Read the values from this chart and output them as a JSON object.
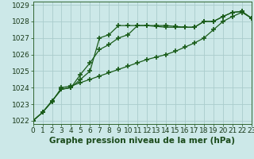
{
  "xlabel": "Graphe pression niveau de la mer (hPa)",
  "bg_color": "#cce8e8",
  "grid_color": "#aacccc",
  "line_color": "#1a5c1a",
  "marker": "+",
  "markersize": 4,
  "markeredgewidth": 1.2,
  "linewidth": 0.9,
  "series": [
    [
      1022.0,
      1022.5,
      1023.2,
      1023.9,
      1024.0,
      1024.8,
      1025.5,
      1026.3,
      1026.6,
      1027.0,
      1027.2,
      1027.75,
      1027.75,
      1027.75,
      1027.75,
      1027.7,
      1027.65,
      1027.65,
      1028.0,
      1028.0,
      1028.3,
      1028.55,
      1028.6,
      1028.2
    ],
    [
      1022.0,
      1022.5,
      1023.2,
      1023.9,
      1024.0,
      1024.5,
      1025.0,
      1027.0,
      1027.2,
      1027.75,
      1027.75,
      1027.75,
      1027.75,
      1027.7,
      1027.65,
      1027.65,
      1027.65,
      1027.65,
      1028.0,
      1028.0,
      1028.3,
      1028.55,
      1028.6,
      1028.2
    ],
    [
      1022.0,
      1022.5,
      1023.15,
      1024.0,
      1024.1,
      1024.3,
      1024.5,
      1024.7,
      1024.9,
      1025.1,
      1025.3,
      1025.5,
      1025.7,
      1025.85,
      1026.0,
      1026.2,
      1026.45,
      1026.7,
      1027.0,
      1027.5,
      1028.0,
      1028.3,
      1028.55,
      1028.2
    ]
  ],
  "xlim": [
    0,
    23
  ],
  "ylim": [
    1021.8,
    1029.2
  ],
  "yticks": [
    1022,
    1023,
    1024,
    1025,
    1026,
    1027,
    1028,
    1029
  ],
  "xticks": [
    0,
    1,
    2,
    3,
    4,
    5,
    6,
    7,
    8,
    9,
    10,
    11,
    12,
    13,
    14,
    15,
    16,
    17,
    18,
    19,
    20,
    21,
    22,
    23
  ],
  "xlabel_fontsize": 7.5,
  "tick_fontsize": 6.5
}
